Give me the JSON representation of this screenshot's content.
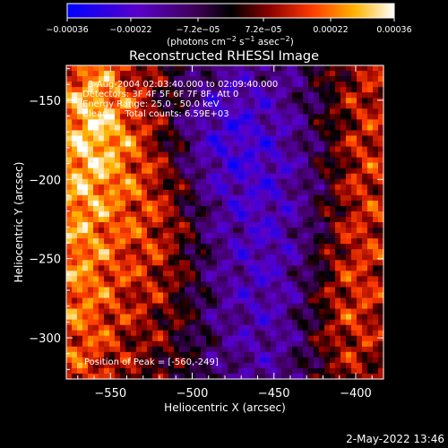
{
  "chart_data": {
    "type": "heatmap",
    "title": "Reconstructed RHESSI Image",
    "xlabel": "Heliocentric X (arcsec)",
    "ylabel": "Heliocentric Y (arcsec)",
    "xlim": [
      -577,
      -383
    ],
    "ylim": [
      -326,
      -128
    ],
    "x_ticks": [
      {
        "value": -550,
        "label": "−550"
      },
      {
        "value": -500,
        "label": "−500"
      },
      {
        "value": -450,
        "label": "−450"
      },
      {
        "value": -400,
        "label": "−400"
      }
    ],
    "y_ticks": [
      {
        "value": -150,
        "label": "−150"
      },
      {
        "value": -200,
        "label": "−200"
      },
      {
        "value": -250,
        "label": "−250"
      },
      {
        "value": -300,
        "label": "−300"
      }
    ],
    "colorbar": {
      "range": [
        -0.00036,
        0.00036
      ],
      "tick_values": [
        -0.00036,
        -0.00022,
        -7.2e-05,
        7.2e-05,
        0.00022,
        0.00036
      ],
      "tick_labels": [
        "−0.00036",
        "−0.00022",
        "−7.2e−05",
        "7.2e−05",
        "0.00022",
        "0.00036"
      ],
      "unit_main": "(photons cm",
      "unit_exp1": "−2",
      "unit_mid1": " s",
      "unit_exp2": "−1",
      "unit_mid2": " asec",
      "unit_exp3": "−2",
      "unit_end": ")",
      "colormap": [
        "#0000ff",
        "#5a00c8",
        "#3c0050",
        "#000000",
        "#8c0000",
        "#ff3c00",
        "#ffb400",
        "#ffffff"
      ]
    },
    "annotations": [
      "3-Aug-2004 02:03:40.000 to 02:09:40.000",
      "Detectors: 3F 4F 5F 6F 7F 8F, Att 0",
      "Energy Range: 25.0 - 50.0 keV",
      "Clean      Total counts: 6.59E+03"
    ],
    "peak_label": "Position of Peak = [-560,-249]",
    "peak": {
      "x": -560,
      "y": -249
    }
  },
  "footer_date": "2-May-2022 13:46"
}
